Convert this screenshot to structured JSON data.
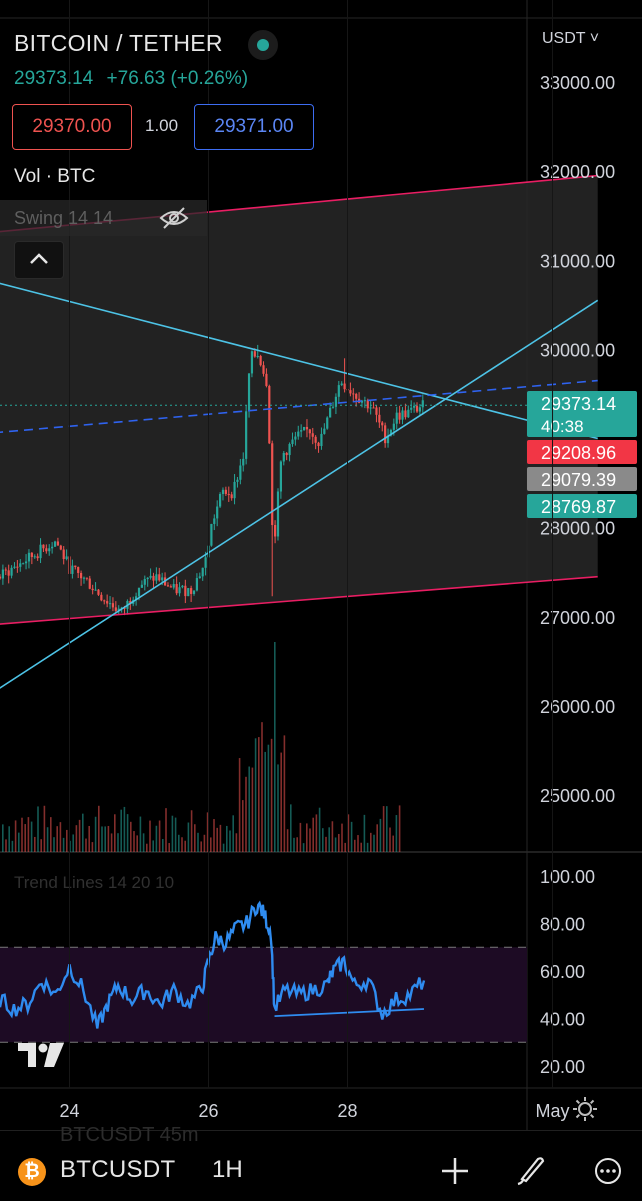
{
  "header": {
    "symbol_title": "BITCOIN / TETHER",
    "last_price": "29373.14",
    "change": "+76.63 (+0.26%)",
    "bid": "29370.00",
    "quantity": "1.00",
    "ask": "29371.00",
    "volume_label": "Vol · BTC",
    "swing_label": "Swing 14 14",
    "currency": "USDT"
  },
  "bottom_bar": {
    "ghost_text": "BTCUSDT    45m",
    "symbol": "BTCUSDT",
    "timeframe": "1H"
  },
  "colors": {
    "up": "#26a69a",
    "down": "#ef5350",
    "trendline": "#4dc3e6",
    "channel": "#e91e63",
    "rsi": "#2f8cf0",
    "dashed_trend": "#2f63f0",
    "bid_tag": "#f23645",
    "mid_tag": "#8a8a8a"
  },
  "chart_data": [
    {
      "type": "candlestick",
      "title": "",
      "ylim": [
        24400,
        33400
      ],
      "y_ticks": [
        "33000.00",
        "32000.00",
        "31000.00",
        "30000.00",
        "28000.00",
        "27000.00",
        "26000.00",
        "25000.00"
      ],
      "x_ticks": [
        "24",
        "26",
        "28",
        "May"
      ],
      "price_tags": [
        {
          "label": "29373.14",
          "sub": "40:38",
          "kind": "last"
        },
        {
          "label": "29208.96",
          "kind": "bid"
        },
        {
          "label": "29079.39",
          "kind": "mid"
        },
        {
          "label": "28769.87",
          "kind": "low"
        }
      ],
      "price_path": [
        {
          "day": 23.0,
          "p": 27450
        },
        {
          "day": 23.3,
          "p": 27600
        },
        {
          "day": 23.5,
          "p": 27700
        },
        {
          "day": 23.8,
          "p": 27850
        },
        {
          "day": 24.0,
          "p": 27550
        },
        {
          "day": 24.25,
          "p": 27400
        },
        {
          "day": 24.5,
          "p": 27200
        },
        {
          "day": 24.75,
          "p": 27050
        },
        {
          "day": 25.0,
          "p": 27350
        },
        {
          "day": 25.25,
          "p": 27450
        },
        {
          "day": 25.5,
          "p": 27300
        },
        {
          "day": 25.75,
          "p": 27300
        },
        {
          "day": 25.95,
          "p": 27600
        },
        {
          "day": 26.05,
          "p": 28050
        },
        {
          "day": 26.2,
          "p": 28400
        },
        {
          "day": 26.35,
          "p": 28400
        },
        {
          "day": 26.5,
          "p": 28800
        },
        {
          "day": 26.6,
          "p": 29900
        },
        {
          "day": 26.72,
          "p": 29950
        },
        {
          "day": 26.85,
          "p": 29600
        },
        {
          "day": 26.93,
          "p": 27700
        },
        {
          "day": 27.05,
          "p": 28800
        },
        {
          "day": 27.25,
          "p": 29000
        },
        {
          "day": 27.45,
          "p": 29100
        },
        {
          "day": 27.6,
          "p": 28950
        },
        {
          "day": 27.75,
          "p": 29300
        },
        {
          "day": 27.9,
          "p": 29650
        },
        {
          "day": 28.1,
          "p": 29500
        },
        {
          "day": 28.35,
          "p": 29350
        },
        {
          "day": 28.55,
          "p": 29000
        },
        {
          "day": 28.7,
          "p": 29250
        },
        {
          "day": 28.9,
          "p": 29300
        },
        {
          "day": 29.1,
          "p": 29373
        }
      ],
      "lines": [
        {
          "name": "channel-upper",
          "from": {
            "day": 22.7,
            "p": 31300
          },
          "to": {
            "day": 31.6,
            "p": 31950
          }
        },
        {
          "name": "channel-lower",
          "from": {
            "day": 22.7,
            "p": 26900
          },
          "to": {
            "day": 31.6,
            "p": 27450
          }
        },
        {
          "name": "descending-trendline",
          "from": {
            "day": 22.7,
            "p": 30800
          },
          "to": {
            "day": 31.6,
            "p": 29000
          }
        },
        {
          "name": "ascending-trendline",
          "from": {
            "day": 22.7,
            "p": 26050
          },
          "to": {
            "day": 31.6,
            "p": 30550
          }
        },
        {
          "name": "dashed-trendline",
          "from": {
            "day": 22.7,
            "p": 29050
          },
          "to": {
            "day": 31.6,
            "p": 29650
          }
        }
      ],
      "last_price_line": 29373.14
    },
    {
      "type": "line",
      "title": "",
      "series_label": "Trend Lines 14 20 10",
      "ylim": [
        15,
        100
      ],
      "y_ticks": [
        "100.00",
        "80.00",
        "60.00",
        "40.00",
        "20.00"
      ],
      "bands": [
        30,
        70
      ],
      "x": [
        23.0,
        23.2,
        23.4,
        23.6,
        23.8,
        24.0,
        24.2,
        24.4,
        24.55,
        24.7,
        24.9,
        25.1,
        25.3,
        25.5,
        25.7,
        25.9,
        26.0,
        26.1,
        26.25,
        26.4,
        26.55,
        26.7,
        26.8,
        26.9,
        26.95,
        27.1,
        27.3,
        27.5,
        27.7,
        27.8,
        27.95,
        28.1,
        28.3,
        28.5,
        28.7,
        28.9,
        29.1
      ],
      "values": [
        48,
        44,
        46,
        56,
        50,
        62,
        52,
        36,
        46,
        54,
        48,
        52,
        46,
        52,
        46,
        52,
        64,
        74,
        72,
        78,
        80,
        88,
        84,
        76,
        44,
        52,
        50,
        52,
        54,
        60,
        64,
        54,
        56,
        42,
        48,
        50,
        56
      ],
      "divergence_line": {
        "from": {
          "day": 26.95,
          "v": 41
        },
        "to": {
          "day": 29.1,
          "v": 44
        }
      }
    }
  ]
}
